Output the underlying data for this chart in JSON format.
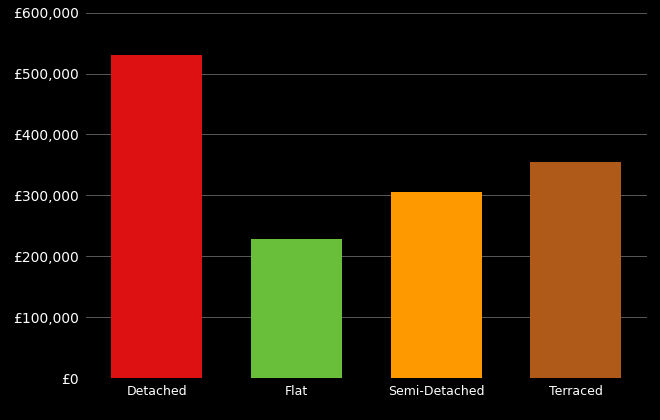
{
  "categories": [
    "Detached",
    "Flat",
    "Semi-Detached",
    "Terraced"
  ],
  "values": [
    530000,
    228000,
    305000,
    355000
  ],
  "bar_colors": [
    "#dd1111",
    "#6abf3a",
    "#ff9900",
    "#b05a1a"
  ],
  "background_color": "#000000",
  "text_color": "#ffffff",
  "grid_color": "#666666",
  "ylim": [
    0,
    600000
  ],
  "ytick_step": 100000,
  "title": "",
  "xlabel": "",
  "ylabel": "",
  "bar_width": 0.65,
  "tick_labelsize": 10,
  "xtick_labelsize": 9
}
